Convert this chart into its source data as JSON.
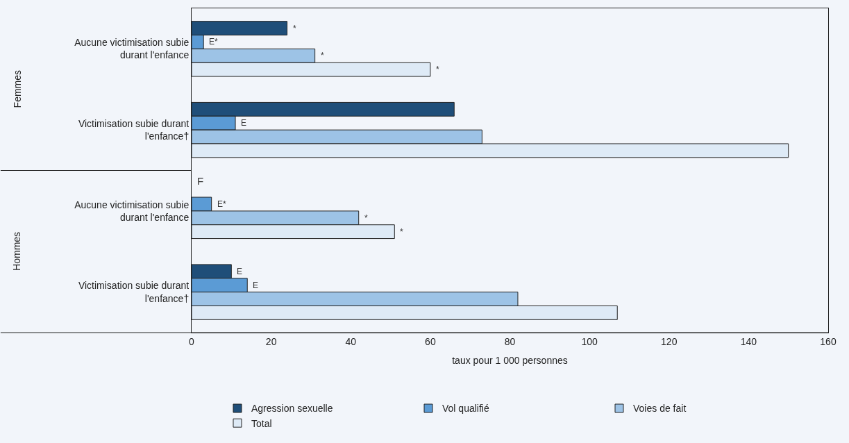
{
  "chart_data": {
    "type": "bar",
    "orientation": "horizontal",
    "xlabel": "taux pour 1 000 personnes",
    "categories": [
      "Aucune victimisation subie durant l'enfance",
      "Victimisation subie durant l'enfance†",
      "Aucune victimisation subie durant l'enfance",
      "Victimisation subie durant l'enfance†"
    ],
    "series": [
      {
        "name": "Agression sexuelle",
        "color": "#1f4e79",
        "values": [
          24,
          66,
          null,
          10
        ],
        "value_labels": [
          "*",
          null,
          "F",
          "E"
        ]
      },
      {
        "name": "Vol qualifié",
        "color": "#5b9bd5",
        "values": [
          3,
          11,
          5,
          14
        ],
        "value_labels": [
          "E*",
          "E",
          "E*",
          "E"
        ]
      },
      {
        "name": "Voies de fait",
        "color": "#9dc3e6",
        "values": [
          31,
          73,
          42,
          82
        ],
        "value_labels": [
          "*",
          null,
          "*",
          null
        ]
      },
      {
        "name": "Total",
        "color": "#deeaf6",
        "values": [
          60,
          150,
          51,
          107
        ],
        "value_labels": [
          "*",
          null,
          "*",
          null
        ]
      }
    ],
    "annotations": [
      "Femmes",
      "Hommes"
    ],
    "xlim": [
      0,
      160
    ],
    "xticks": [
      0,
      20,
      40,
      60,
      80,
      100,
      120,
      140,
      160
    ],
    "grid": false,
    "legend": "bottom"
  }
}
